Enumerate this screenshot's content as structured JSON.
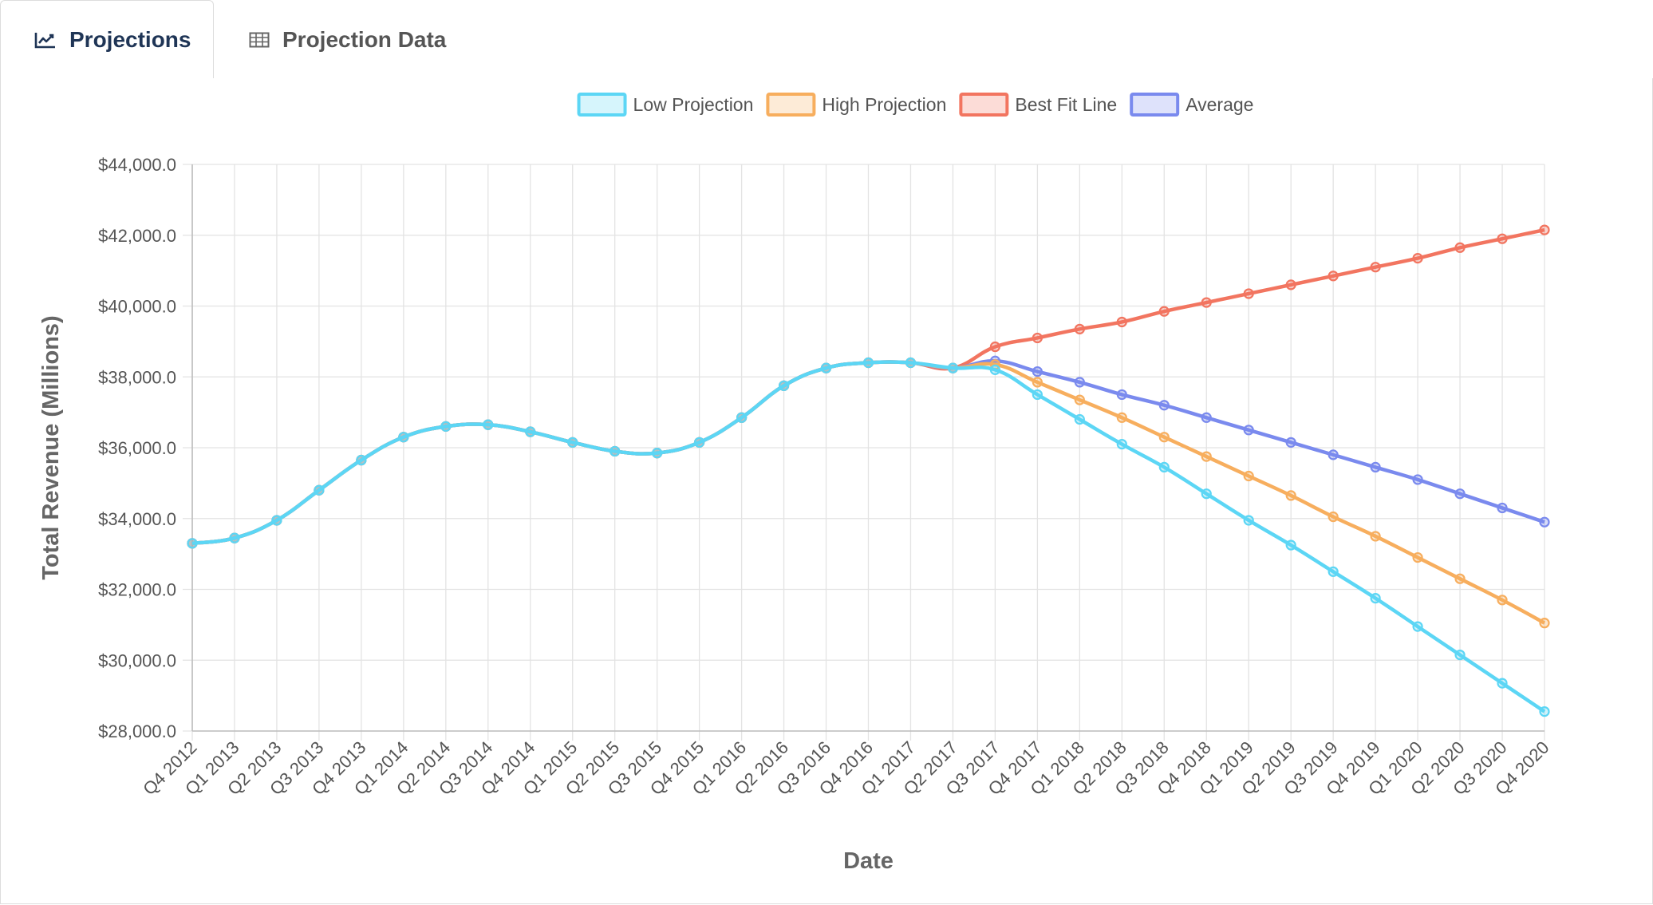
{
  "tabs": [
    {
      "label": "Projections",
      "icon": "line-chart-icon",
      "active": true
    },
    {
      "label": "Projection Data",
      "icon": "table-icon",
      "active": false
    }
  ],
  "colors": {
    "active_tab_text": "#1f3556",
    "inactive_tab_text": "#555555"
  },
  "chart_data": {
    "type": "line",
    "title": "",
    "xlabel": "Date",
    "ylabel": "Total Revenue (Millions)",
    "ylim": [
      28000,
      44000
    ],
    "y_tick_step": 2000,
    "y_tick_format": "$#,###.0",
    "grid": true,
    "legend_position": "top-center",
    "categories": [
      "Q4 2012",
      "Q1 2013",
      "Q2 2013",
      "Q3 2013",
      "Q4 2013",
      "Q1 2014",
      "Q2 2014",
      "Q3 2014",
      "Q4 2014",
      "Q1 2015",
      "Q2 2015",
      "Q3 2015",
      "Q4 2015",
      "Q1 2016",
      "Q2 2016",
      "Q3 2016",
      "Q4 2016",
      "Q1 2017",
      "Q2 2017",
      "Q3 2017",
      "Q4 2017",
      "Q1 2018",
      "Q2 2018",
      "Q3 2018",
      "Q4 2018",
      "Q1 2019",
      "Q2 2019",
      "Q3 2019",
      "Q4 2019",
      "Q1 2020",
      "Q2 2020",
      "Q3 2020",
      "Q4 2020"
    ],
    "series": [
      {
        "name": "Low Projection",
        "color": "#5cd6f5",
        "values": [
          33300,
          33450,
          33950,
          34800,
          35650,
          36300,
          36600,
          36650,
          36450,
          36150,
          35900,
          35850,
          36150,
          36850,
          37750,
          38250,
          38400,
          38400,
          38250,
          38200,
          37500,
          36800,
          36100,
          35450,
          34700,
          33950,
          33250,
          32500,
          31750,
          30950,
          30150,
          29350,
          28550
        ]
      },
      {
        "name": "High Projection",
        "color": "#f7ae5e",
        "values": [
          33300,
          33450,
          33950,
          34800,
          35650,
          36300,
          36600,
          36650,
          36450,
          36150,
          35900,
          35850,
          36150,
          36850,
          37750,
          38250,
          38400,
          38400,
          38250,
          38350,
          37850,
          37350,
          36850,
          36300,
          35750,
          35200,
          34650,
          34050,
          33500,
          32900,
          32300,
          31700,
          31050
        ]
      },
      {
        "name": "Best Fit Line",
        "color": "#f27560",
        "values": [
          33300,
          33450,
          33950,
          34800,
          35650,
          36300,
          36600,
          36650,
          36450,
          36150,
          35900,
          35850,
          36150,
          36850,
          37750,
          38250,
          38400,
          38400,
          38250,
          38850,
          39100,
          39350,
          39550,
          39850,
          40100,
          40350,
          40600,
          40850,
          41100,
          41350,
          41650,
          41900,
          42150
        ]
      },
      {
        "name": "Average",
        "color": "#7a8aee",
        "values": [
          33300,
          33450,
          33950,
          34800,
          35650,
          36300,
          36600,
          36650,
          36450,
          36150,
          35900,
          35850,
          36150,
          36850,
          37750,
          38250,
          38400,
          38400,
          38250,
          38450,
          38150,
          37850,
          37500,
          37200,
          36850,
          36500,
          36150,
          35800,
          35450,
          35100,
          34700,
          34300,
          33900
        ]
      }
    ],
    "y_tick_labels": [
      "$28,000.0",
      "$30,000.0",
      "$32,000.0",
      "$34,000.0",
      "$36,000.0",
      "$38,000.0",
      "$40,000.0",
      "$42,000.0",
      "$44,000.0"
    ]
  }
}
